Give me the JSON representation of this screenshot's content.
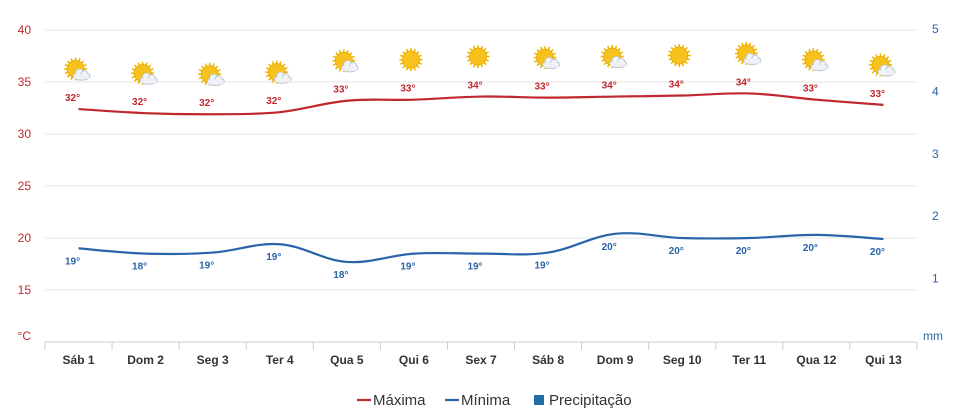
{
  "chart_data": {
    "type": "line",
    "categories": [
      "Sáb 1",
      "Dom 2",
      "Seg 3",
      "Ter 4",
      "Qua 5",
      "Qui 6",
      "Sex 7",
      "Sáb 8",
      "Dom 9",
      "Seg 10",
      "Ter 11",
      "Qua 12",
      "Qui 13"
    ],
    "series": [
      {
        "name": "Máxima",
        "axis": "left",
        "color": "#c0282d",
        "values": [
          32.4,
          32.0,
          31.9,
          32.1,
          33.2,
          33.3,
          33.6,
          33.5,
          33.6,
          33.7,
          33.9,
          33.3,
          32.8
        ],
        "labels": [
          "32°",
          "32°",
          "32°",
          "32°",
          "33°",
          "33°",
          "34°",
          "33°",
          "34°",
          "34°",
          "34°",
          "33°",
          "33°"
        ]
      },
      {
        "name": "Mínima",
        "axis": "left",
        "color": "#2a64a8",
        "values": [
          19.0,
          18.5,
          18.6,
          19.4,
          17.7,
          18.5,
          18.5,
          18.6,
          20.4,
          20.0,
          20.0,
          20.3,
          19.9
        ],
        "labels": [
          "19°",
          "18°",
          "19°",
          "19°",
          "18°",
          "19°",
          "19°",
          "19°",
          "20°",
          "20°",
          "20°",
          "20°",
          "20°"
        ]
      },
      {
        "name": "Precipitação",
        "axis": "right",
        "color": "#1f6fa8",
        "values": [
          0,
          0,
          0,
          0,
          0,
          0,
          0,
          0,
          0,
          0,
          0,
          0,
          0
        ]
      }
    ],
    "weather_icons": [
      "partly-cloudy",
      "partly-cloudy",
      "partly-cloudy",
      "partly-cloudy",
      "partly-cloudy",
      "sunny",
      "sunny",
      "partly-cloudy",
      "partly-cloudy",
      "sunny",
      "partly-cloudy",
      "partly-cloudy",
      "partly-cloudy"
    ],
    "y_left": {
      "ticks": [
        "40",
        "35",
        "30",
        "25",
        "20",
        "15"
      ],
      "ylim": [
        10,
        40
      ],
      "unit": "°C"
    },
    "y_right": {
      "ticks": [
        "5",
        "4",
        "3",
        "2",
        "1"
      ],
      "ylim": [
        0,
        5
      ],
      "unit": "mm"
    },
    "grid": true,
    "legend_position": "bottom-center"
  }
}
